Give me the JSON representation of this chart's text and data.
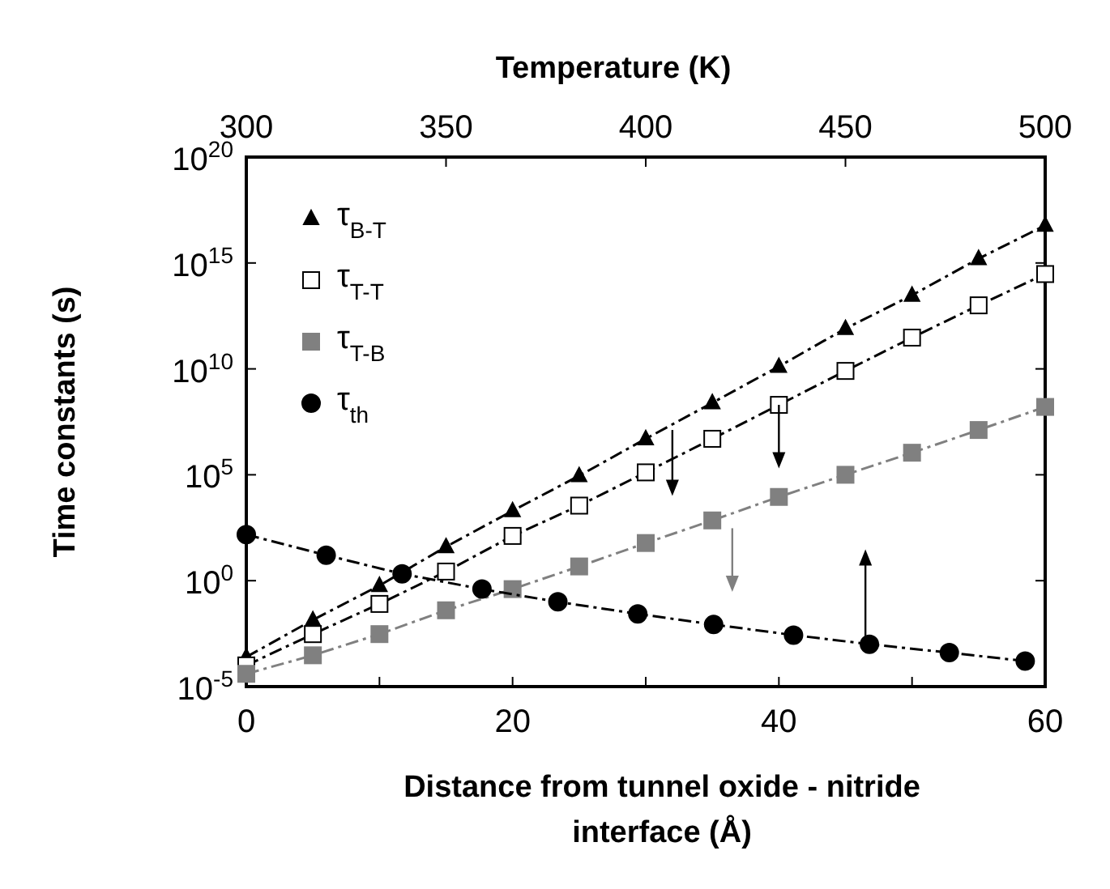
{
  "chart_data": {
    "type": "line",
    "xlabel": "Distance from tunnel oxide - nitride interface (Å)",
    "ylabel": "Time constants (s)",
    "x2label": "Temperature (K)",
    "xlim": [
      0,
      60
    ],
    "xticks": [
      0,
      {
        "value": 10,
        "label": null
      },
      20,
      {
        "value": 30,
        "label": null
      },
      40,
      {
        "value": 50,
        "label": null
      },
      60
    ],
    "x2lim": [
      300,
      500
    ],
    "x2ticks": [
      300,
      350,
      400,
      450,
      500
    ],
    "ylim": [
      1e-05,
      1e+20
    ],
    "log": "y",
    "yticks": [
      {
        "value": 1e-05,
        "label": "10$^{-5}$"
      },
      {
        "value": 1,
        "label": "10$^{0}$"
      },
      {
        "value": 100000.0,
        "label": "10$^{5}$"
      },
      {
        "value": 10000000000.0,
        "label": "10$^{10}$"
      },
      {
        "value": 1000000000000000.0,
        "label": "10$^{15}$"
      },
      {
        "value": 1e+20,
        "label": "10$^{20}$"
      }
    ],
    "legend": "top left",
    "line_style": "dashed",
    "grid": false,
    "x": [
      0,
      5,
      10,
      15,
      20,
      25,
      30,
      35,
      40,
      45,
      50,
      55,
      60
    ],
    "series": [
      {
        "name": "τ$_{B-T}$",
        "color": "#000000",
        "marker": "triangle",
        "values": [
          0.00025,
          0.014,
          0.59,
          40,
          2000,
          90000.0,
          5000000.0,
          250000000.0,
          13000000000.0,
          800000000000.0,
          30000000000000.0,
          1600000000000000.0,
          6e+16
        ]
      },
      {
        "name": "τ$_{T-T}$",
        "color": "#ffffff",
        "marker": "square",
        "values": [
          0.0001,
          0.003,
          0.08,
          2.7,
          130,
          3500,
          130000.0,
          5000000.0,
          200000000.0,
          8000000000.0,
          300000000000.0,
          10000000000000.0,
          300000000000000.0
        ]
      },
      {
        "name": "τ$_{T-B}$",
        "color": "#808080",
        "marker": "square",
        "values": [
          4e-05,
          0.0003,
          0.003,
          0.04,
          0.4,
          4.7,
          60,
          700,
          9000,
          100000.0,
          1100000.0,
          13000000.0,
          160000000.0
        ]
      },
      {
        "name": "τ$_{th}$",
        "color": "#000000",
        "marker": "circle",
        "axis": "x2",
        "x": [
          300,
          320,
          339,
          359,
          378,
          398,
          417,
          437,
          456,
          476,
          495
        ],
        "values": [
          150,
          16,
          2.1,
          0.4,
          0.1,
          0.027,
          0.0085,
          0.0027,
          0.001,
          0.0004,
          0.00016
        ]
      }
    ]
  }
}
